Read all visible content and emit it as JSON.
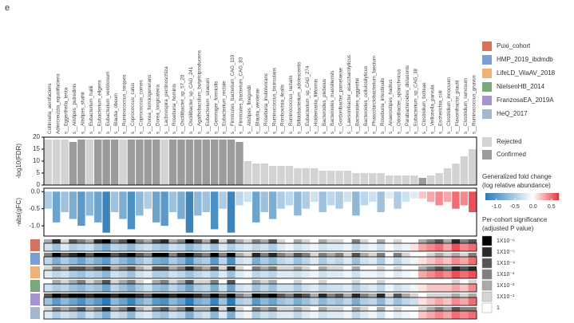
{
  "panel_label": "e",
  "chart_data": {
    "type": "bar",
    "categories": [
      "Collinsella_aerofaciens",
      "Adlercreutzia_equolifaciens",
      "s__Eggerthella_lenta",
      "s__Alistipes_putredinis",
      "s__Alistipes_shahii",
      "s__Eubacterium_hallii",
      "s__Eubacterium_eligens",
      "s__Eubacterium_ventriosum",
      "s__Blautia_obeum",
      "s__Ruminococcus_torques",
      "s__Coprococcus_catus",
      "s__Coprococcus_comes",
      "s__Dorea_formicigenerans",
      "s__Dorea_longicatena",
      "s__Lachnospira_pectinoschiza",
      "s__Roseburia_hominis",
      "s__Oscillibacter_sp_57_20",
      "s__Oscillibacter_sp_CAG_241",
      "s__Agathobaculum_butyriciproducens",
      "s__Eubacterium_siraeum",
      "s__Gemmiger_formicilis",
      "s__Eubacterium_rectale",
      "s__Firmicutes_bacterium_CAG_110",
      "s__Firmicutes_bacterium_CAG_83",
      "s__Alistipes_finegoldii",
      "s__Blautia_wexlerae",
      "s__Roseburia_inulinivorans",
      "s__Ruminococcus_bicirculans",
      "s__Romboutsia_ilealis",
      "s__Ruminococcus_lactaris",
      "s__Bifidobacterium_adolescentis",
      "s__Eubacterium_sp_CAG_274",
      "s__Holdemania_filiformis",
      "s__Bacteroides_plebeius",
      "s__Bacteroides_massiliensis",
      "s__Gordonibacter_pamelaeae",
      "s__Lawsonibacter_asaccharolyticus",
      "s__Bacteroides_eggerthii",
      "s__Bacteroides_cellulosilyticus",
      "s__Phascolarctobacterium_faecium",
      "s__Roseburia_intestinalis",
      "s__Anaerostipes_hadrus",
      "s__Odoribacter_splanchnicus",
      "s__Parabacteroides_distasonis",
      "s__Eubacterium_sp_CAG_38",
      "s__Clostridium_bolteae",
      "s__Veillonella_parvula",
      "s__Escherichia_coli",
      "s__Clostridium_innocuum",
      "s__Flavonifractor_plautii",
      "s__Clostridium_ramosum",
      "s__Ruminococcus_gnavus"
    ],
    "ylabel": "-log10(FDR)",
    "values": [
      19,
      19,
      19,
      18,
      19,
      19,
      19,
      19,
      19,
      19,
      19,
      19,
      19,
      19,
      19,
      19,
      19,
      19,
      19,
      19,
      19,
      19,
      19,
      18,
      10,
      9,
      9,
      8,
      8,
      8,
      7,
      7,
      7,
      6,
      6,
      6,
      6,
      5,
      5,
      5,
      5,
      4,
      4,
      4,
      4,
      3,
      4,
      5,
      7,
      9,
      12,
      15
    ],
    "confirmed": [
      0,
      0,
      0,
      1,
      1,
      0,
      1,
      1,
      1,
      0,
      1,
      1,
      1,
      1,
      0,
      1,
      1,
      1,
      1,
      1,
      1,
      1,
      1,
      1,
      0,
      0,
      0,
      0,
      0,
      0,
      0,
      0,
      0,
      0,
      0,
      0,
      0,
      0,
      0,
      0,
      0,
      0,
      0,
      0,
      0,
      1,
      0,
      0,
      0,
      0,
      0,
      0
    ],
    "status_labels": [
      "Rejected",
      "Confirmed"
    ],
    "status_colors": [
      "#d3d3d3",
      "#9b9b9b"
    ],
    "ylim": [
      0,
      20
    ],
    "yticks": [
      0,
      5,
      10,
      15,
      20
    ],
    "y2label": "-abs(gFC)",
    "gfc": [
      -0.5,
      -0.9,
      -0.6,
      -0.8,
      -1.0,
      -0.7,
      -0.9,
      -1.2,
      -0.6,
      -0.8,
      -1.1,
      -0.7,
      -0.5,
      -0.9,
      -1.0,
      -0.6,
      -0.8,
      -1.2,
      -0.7,
      -0.6,
      -1.1,
      -0.5,
      -1.2,
      -0.4,
      -0.3,
      -0.9,
      -0.6,
      -0.8,
      -0.5,
      -0.4,
      -0.7,
      -0.5,
      -0.3,
      -0.6,
      -0.4,
      -0.5,
      -0.3,
      -0.7,
      -0.4,
      -0.3,
      -0.6,
      -0.2,
      -0.5,
      -0.3,
      -0.2,
      0.2,
      0.3,
      0.4,
      0.3,
      0.5,
      0.4,
      0.6
    ],
    "y2lim": [
      -1.3,
      0.1
    ],
    "y2ticks": [
      {
        "value": 0,
        "label": "0.0"
      },
      {
        "value": -0.5,
        "label": "-0.5"
      },
      {
        "value": -1,
        "label": "-1.0"
      }
    ],
    "colorbar": {
      "title": [
        "Generalized fold change",
        "(log relative abundance)"
      ],
      "clim": [
        -1.3,
        0.7
      ],
      "colors": [
        "#2c7bb6",
        "#ffffff",
        "#e8333c"
      ],
      "ticks": [
        {
          "value": -1,
          "label": "-1.0"
        },
        {
          "value": -0.5,
          "label": "-0.5"
        },
        {
          "value": 0,
          "label": "0.0"
        },
        {
          "value": 0.5,
          "label": "0.5"
        }
      ]
    },
    "cohorts": [
      {
        "name": "Puxi_cohort",
        "color": "#d4735e",
        "values": [
          -0.3,
          -0.6,
          -0.2,
          -0.5,
          -0.4,
          -0.3,
          -0.6,
          -0.8,
          -0.4,
          -0.5,
          -0.7,
          -0.4,
          -0.3,
          -0.5,
          -0.6,
          -0.3,
          -0.4,
          -0.7,
          -0.5,
          -0.3,
          -0.6,
          -0.2,
          -0.5,
          -0.3,
          -0.2,
          -0.4,
          -0.3,
          -0.5,
          -0.2,
          -0.1,
          -0.3,
          -0.2,
          -0.1,
          -0.3,
          -0.2,
          -0.2,
          -0.1,
          -0.4,
          -0.2,
          -0.1,
          -0.3,
          0.0,
          -0.2,
          -0.1,
          0.1,
          0.3,
          0.4,
          0.5,
          0.3,
          0.6,
          0.4,
          0.5
        ],
        "significance": [
          2,
          5,
          1,
          4,
          3,
          2,
          5,
          6,
          3,
          4,
          6,
          3,
          2,
          4,
          5,
          2,
          3,
          6,
          4,
          2,
          5,
          1,
          4,
          2,
          1,
          3,
          2,
          4,
          1,
          0,
          2,
          1,
          0,
          2,
          1,
          1,
          0,
          3,
          1,
          0,
          2,
          0,
          1,
          0,
          0,
          2,
          3,
          4,
          2,
          5,
          3,
          4
        ]
      },
      {
        "name": "HMP_2019_ibdmdb",
        "color": "#7b9fd4",
        "values": [
          -0.4,
          -0.8,
          -0.5,
          -0.7,
          -0.9,
          -0.6,
          -0.8,
          -1.0,
          -0.5,
          -0.7,
          -0.9,
          -0.6,
          -0.4,
          -0.8,
          -0.9,
          -0.5,
          -0.7,
          -1.1,
          -0.6,
          -0.5,
          -1.0,
          -0.4,
          -1.1,
          -0.3,
          -0.2,
          -0.8,
          -0.5,
          -0.7,
          -0.4,
          -0.3,
          -0.6,
          -0.4,
          -0.2,
          -0.5,
          -0.3,
          -0.4,
          -0.2,
          -0.6,
          -0.3,
          -0.2,
          -0.5,
          -0.1,
          -0.4,
          -0.2,
          -0.1,
          0.1,
          0.2,
          0.3,
          0.2,
          0.4,
          0.3,
          0.5
        ],
        "significance": [
          3,
          6,
          4,
          5,
          6,
          4,
          6,
          6,
          4,
          5,
          6,
          4,
          3,
          6,
          6,
          3,
          5,
          6,
          4,
          3,
          6,
          3,
          6,
          2,
          1,
          5,
          3,
          5,
          3,
          2,
          4,
          3,
          1,
          3,
          2,
          3,
          1,
          4,
          2,
          1,
          3,
          0,
          3,
          1,
          0,
          0,
          1,
          2,
          1,
          2,
          1,
          3
        ]
      },
      {
        "name": "LifeLD_VilaAV_2018",
        "color": "#f0b07a",
        "values": [
          -0.2,
          -0.4,
          -0.3,
          -0.5,
          -0.6,
          -0.4,
          -0.5,
          -0.7,
          -0.3,
          -0.4,
          -0.6,
          -0.3,
          -0.2,
          -0.5,
          -0.5,
          -0.3,
          -0.4,
          -0.6,
          -0.4,
          -0.3,
          -0.5,
          -0.2,
          -0.6,
          -0.2,
          -0.1,
          -0.4,
          -0.3,
          -0.4,
          -0.2,
          -0.2,
          -0.3,
          -0.2,
          -0.1,
          -0.3,
          -0.2,
          -0.2,
          -0.1,
          -0.3,
          -0.1,
          -0.1,
          -0.2,
          0.0,
          -0.2,
          -0.1,
          0.0,
          0.3,
          0.4,
          0.5,
          0.4,
          0.6,
          0.5,
          0.6
        ],
        "significance": [
          1,
          3,
          2,
          4,
          4,
          3,
          4,
          5,
          2,
          3,
          4,
          2,
          1,
          4,
          4,
          2,
          3,
          5,
          3,
          2,
          4,
          1,
          5,
          1,
          0,
          3,
          2,
          3,
          1,
          1,
          2,
          1,
          0,
          2,
          1,
          1,
          0,
          2,
          0,
          0,
          1,
          0,
          1,
          0,
          0,
          2,
          3,
          4,
          3,
          5,
          4,
          5
        ]
      },
      {
        "name": "NielsenHB_2014",
        "color": "#78a87c",
        "values": [
          -0.3,
          -0.5,
          -0.4,
          -0.6,
          -0.7,
          -0.5,
          -0.6,
          -0.9,
          -0.4,
          -0.6,
          -0.8,
          -0.5,
          -0.3,
          -0.6,
          -0.7,
          -0.4,
          -0.6,
          -0.9,
          -0.5,
          -0.4,
          -0.8,
          -0.3,
          -0.9,
          -0.3,
          -0.2,
          -0.6,
          -0.4,
          -0.6,
          -0.3,
          -0.3,
          -0.5,
          -0.3,
          -0.2,
          -0.4,
          -0.3,
          -0.3,
          -0.2,
          -0.5,
          -0.3,
          -0.2,
          -0.4,
          -0.1,
          -0.3,
          -0.2,
          -0.1,
          0.1,
          0.2,
          0.2,
          0.2,
          0.3,
          0.2,
          0.4
        ],
        "significance": [
          0,
          2,
          1,
          2,
          3,
          1,
          2,
          4,
          1,
          2,
          3,
          1,
          0,
          2,
          3,
          1,
          2,
          4,
          1,
          1,
          3,
          0,
          4,
          0,
          0,
          2,
          1,
          2,
          0,
          0,
          1,
          0,
          0,
          1,
          0,
          0,
          0,
          1,
          0,
          0,
          1,
          0,
          0,
          0,
          0,
          0,
          0,
          0,
          0,
          1,
          0,
          1
        ]
      },
      {
        "name": "FranzosaEA_2019A",
        "color": "#a594cf",
        "values": [
          -0.6,
          -1.0,
          -0.7,
          -0.9,
          -1.1,
          -0.8,
          -1.0,
          -1.3,
          -0.7,
          -0.9,
          -1.2,
          -0.8,
          -0.6,
          -1.0,
          -1.1,
          -0.7,
          -0.9,
          -1.3,
          -0.8,
          -0.7,
          -1.2,
          -0.6,
          -1.3,
          -0.5,
          -0.4,
          -1.0,
          -0.7,
          -0.9,
          -0.6,
          -0.5,
          -0.8,
          -0.6,
          -0.4,
          -0.7,
          -0.5,
          -0.6,
          -0.4,
          -0.8,
          -0.5,
          -0.4,
          -0.7,
          -0.3,
          -0.6,
          -0.4,
          -0.3,
          0.1,
          0.2,
          0.3,
          0.2,
          0.4,
          0.3,
          0.5
        ],
        "significance": [
          4,
          6,
          5,
          6,
          6,
          5,
          6,
          6,
          5,
          6,
          6,
          5,
          4,
          6,
          6,
          5,
          6,
          6,
          5,
          4,
          6,
          4,
          6,
          3,
          2,
          6,
          5,
          6,
          4,
          3,
          5,
          4,
          2,
          5,
          3,
          4,
          2,
          5,
          3,
          2,
          5,
          1,
          4,
          2,
          1,
          0,
          1,
          1,
          1,
          2,
          1,
          2
        ]
      },
      {
        "name": "HeQ_2017",
        "color": "#a3b8cc",
        "values": [
          -0.2,
          -0.5,
          -0.3,
          -0.4,
          -0.6,
          -0.3,
          -0.5,
          -0.8,
          -0.3,
          -0.4,
          -0.7,
          -0.3,
          -0.2,
          -0.5,
          -0.6,
          -0.3,
          -0.4,
          -0.8,
          -0.4,
          -0.3,
          -0.7,
          -0.2,
          -0.8,
          -0.2,
          -0.1,
          -0.5,
          -0.3,
          -0.4,
          -0.2,
          -0.2,
          -0.4,
          -0.2,
          -0.1,
          -0.3,
          -0.2,
          -0.2,
          -0.1,
          -0.4,
          -0.2,
          -0.1,
          -0.3,
          0.0,
          -0.2,
          -0.1,
          0.0,
          0.2,
          0.3,
          0.4,
          0.3,
          0.5,
          0.4,
          0.5
        ],
        "significance": [
          1,
          3,
          2,
          3,
          4,
          2,
          3,
          5,
          2,
          3,
          5,
          2,
          1,
          3,
          4,
          2,
          3,
          5,
          2,
          2,
          5,
          1,
          5,
          1,
          0,
          3,
          2,
          3,
          1,
          1,
          2,
          1,
          0,
          2,
          1,
          1,
          0,
          2,
          1,
          0,
          2,
          0,
          1,
          0,
          0,
          1,
          2,
          3,
          2,
          4,
          3,
          3
        ]
      }
    ],
    "significance_legend": {
      "title": [
        "Per-cohort significance",
        "(adjusted P value)"
      ],
      "levels": [
        {
          "value": 6,
          "label": "1X10⁻⁶"
        },
        {
          "value": 5,
          "label": "1X10⁻⁵"
        },
        {
          "value": 4,
          "label": "1X10⁻⁴"
        },
        {
          "value": 3,
          "label": "1X10⁻³"
        },
        {
          "value": 2,
          "label": "1X10⁻²"
        },
        {
          "value": 1,
          "label": "1X10⁻¹"
        },
        {
          "value": 0,
          "label": "1"
        }
      ]
    }
  }
}
